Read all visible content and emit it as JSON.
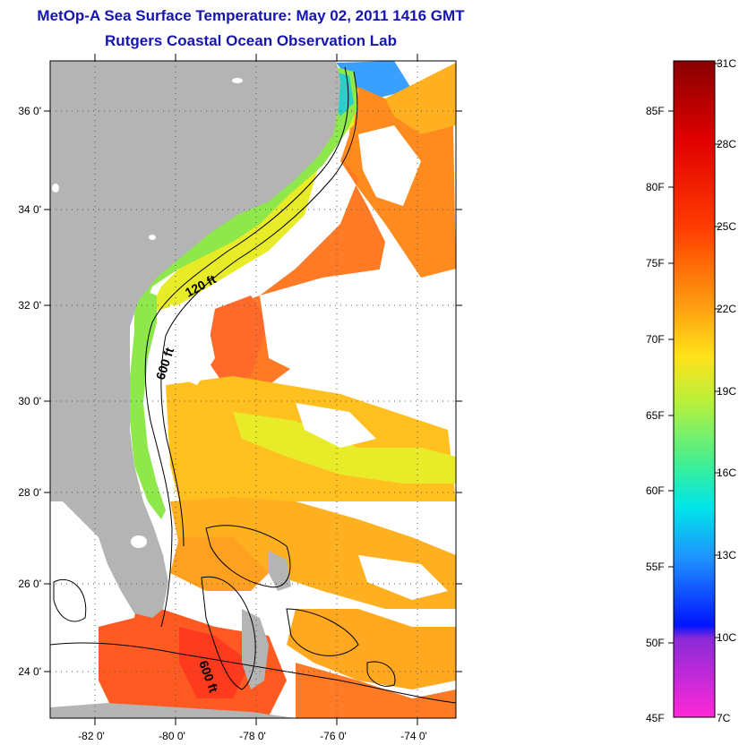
{
  "header": {
    "title": "MetOp-A Sea Surface Temperature:  May 02, 2011 1416 GMT",
    "subtitle": "Rutgers Coastal Ocean Observation Lab"
  },
  "map": {
    "lat_labels": [
      "36 0'",
      "34 0'",
      "32 0'",
      "30 0'",
      "28 0'",
      "26 0'",
      "24 0'"
    ],
    "lon_labels": [
      "-82 0'",
      "-80 0'",
      "-78 0'",
      "-76 0'",
      "-74 0'"
    ],
    "contour_labels": [
      "120 ft",
      "600 ft",
      "600 ft"
    ],
    "land_color": "#b4b4b4",
    "cloud_color": "#ffffff"
  },
  "colorbar": {
    "fahrenheit_labels": [
      "85F",
      "80F",
      "75F",
      "70F",
      "65F",
      "60F",
      "55F",
      "50F",
      "45F"
    ],
    "celsius_labels": [
      "31C",
      "28C",
      "25C",
      "22C",
      "19C",
      "16C",
      "13C",
      "10C",
      "7C"
    ]
  }
}
